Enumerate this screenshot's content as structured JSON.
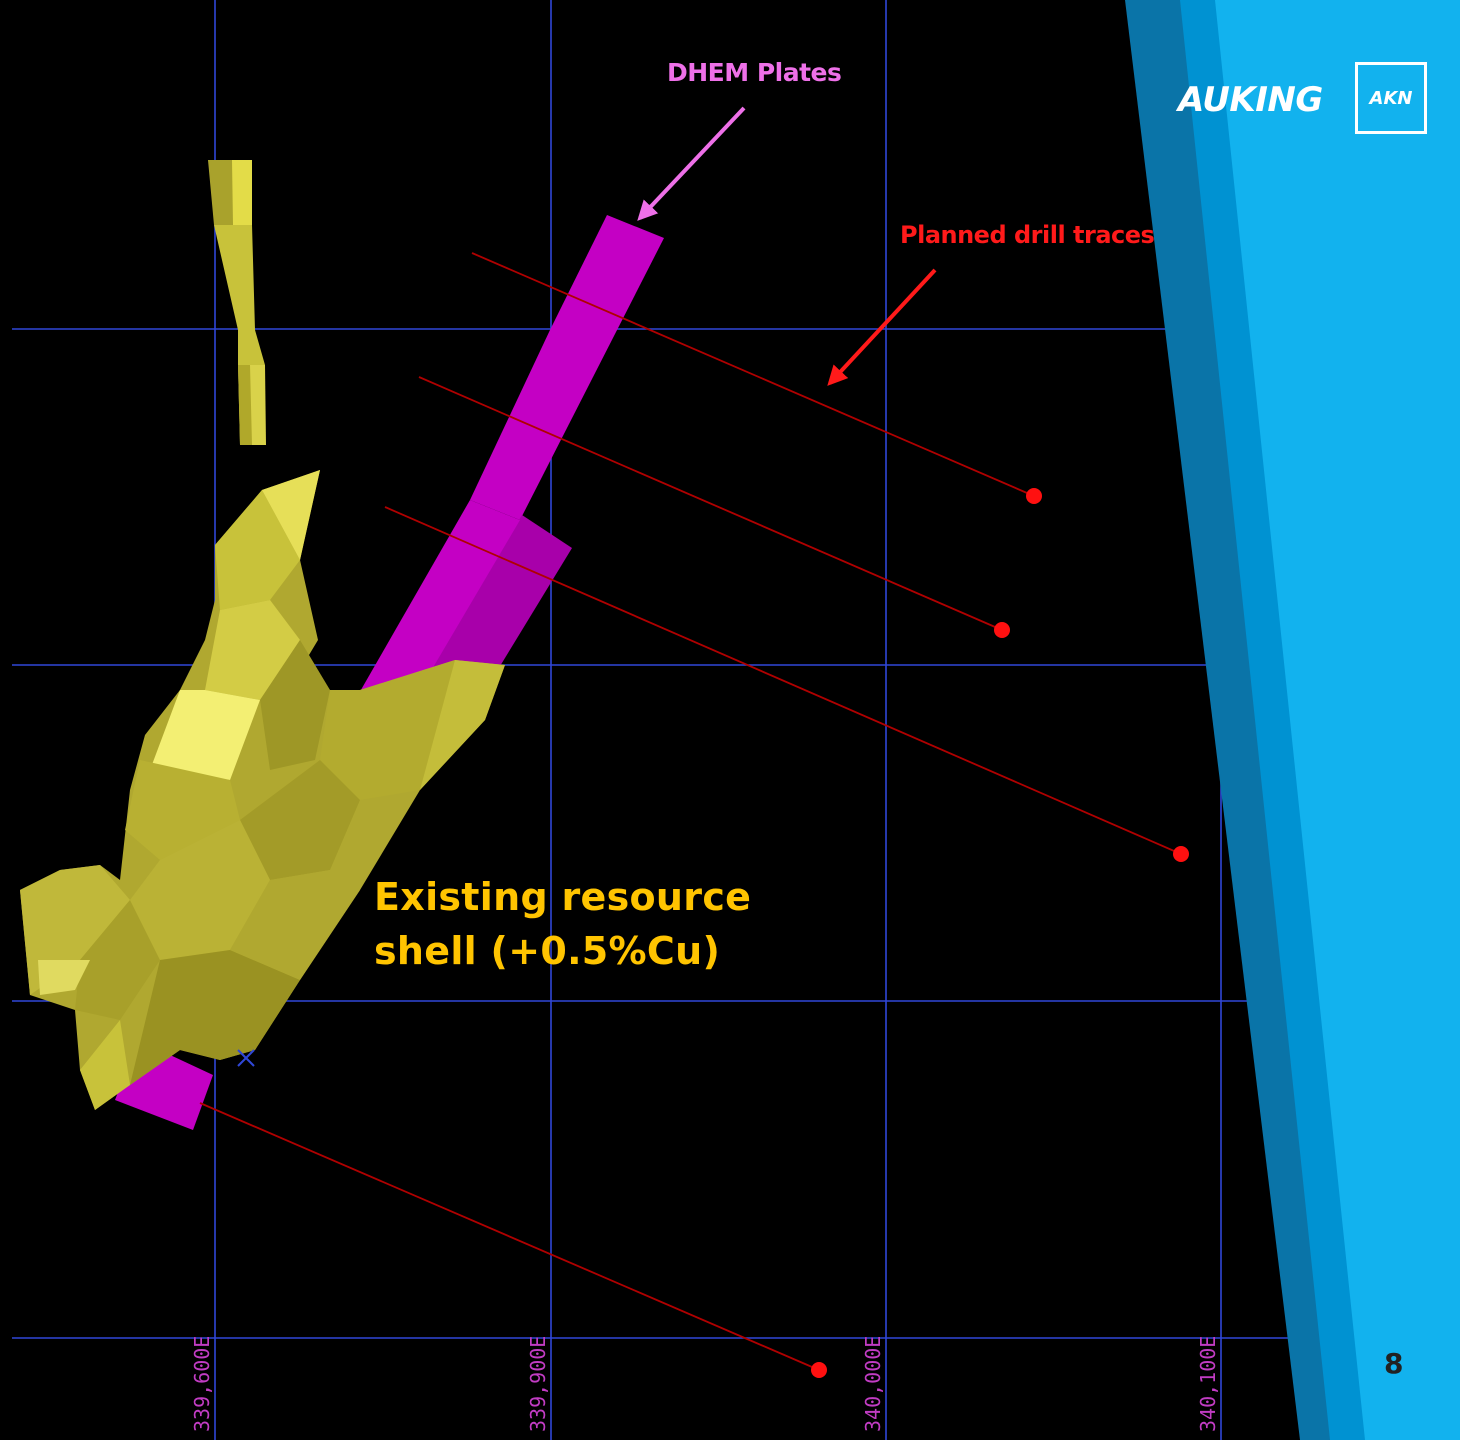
{
  "colors": {
    "background": "#000000",
    "grid": "#3047d8",
    "grid_label": "#c23cc4",
    "plate": "#c400c4",
    "plate_dark": "#a000a6",
    "shell_light": "#f3ef73",
    "shell_mid": "#c8c23a",
    "shell_dark": "#8c8620",
    "drill": "#b00000",
    "drill_dot": "#ff1010",
    "dhem_label": "#ee70e8",
    "drill_label": "#ff1a1a",
    "resource_label": "#ffc400",
    "panel_light": "#10b4f0",
    "panel_mid": "#0090cf",
    "panel_dark": "#0a74a8",
    "brand_text": "#ffffff",
    "page_num": "#222222"
  },
  "labels": {
    "dhem_plates": "DHEM Plates",
    "planned_drill_traces": "Planned drill traces",
    "resource_line1": "Existing resource",
    "resource_line2": "shell (+0.5%Cu)"
  },
  "grid": {
    "eastings": [
      "339,600E",
      "339,900E",
      "340,000E",
      "340,100E"
    ]
  },
  "icons": [
    "arrow-icon"
  ],
  "brand": {
    "name": "AUKING",
    "ticker": "AKN"
  },
  "page_number": "8"
}
